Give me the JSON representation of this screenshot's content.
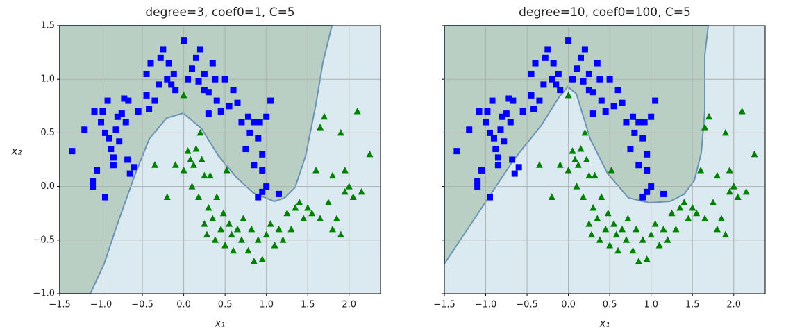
{
  "chart_data": [
    {
      "type": "scatter",
      "title": "degree=3, coef0=1, C=5",
      "x_label": "x₁",
      "y_label": "x₂",
      "xlim": [
        -1.5,
        2.38
      ],
      "ylim": [
        -1.0,
        1.5
      ],
      "grid": true,
      "xticks": [
        {
          "value": -1.5,
          "label": "−1.5"
        },
        {
          "value": -1.0,
          "label": "−1.0"
        },
        {
          "value": -0.5,
          "label": "−0.5"
        },
        {
          "value": 0.0,
          "label": "0.0"
        },
        {
          "value": 0.5,
          "label": "0.5"
        },
        {
          "value": 1.0,
          "label": "1.0"
        },
        {
          "value": 1.5,
          "label": "1.5"
        },
        {
          "value": 2.0,
          "label": "2.0"
        }
      ],
      "yticks": [
        {
          "value": -1.0,
          "label": "−1.0"
        },
        {
          "value": -0.5,
          "label": "−0.5"
        },
        {
          "value": 0.0,
          "label": "0.0"
        },
        {
          "value": 0.5,
          "label": "0.5"
        },
        {
          "value": 1.0,
          "label": "1.0"
        },
        {
          "value": 1.5,
          "label": "1.5"
        }
      ],
      "series": [
        {
          "color": "#0000ff",
          "marker": "square",
          "x": [
            -1.35,
            -1.2,
            -1.1,
            -1.1,
            -1.05,
            -1.08,
            -1.0,
            -0.98,
            -0.95,
            -0.95,
            -0.92,
            -0.9,
            -0.88,
            -0.85,
            -0.85,
            -0.82,
            -0.8,
            -0.78,
            -0.75,
            -0.72,
            -0.7,
            -0.68,
            -0.67,
            -0.65,
            -0.6,
            -0.55,
            -0.45,
            -0.45,
            -0.4,
            -0.42,
            -0.35,
            -0.3,
            -0.28,
            -0.25,
            -0.2,
            -0.18,
            -0.15,
            -0.1,
            -0.12,
            0.0,
            0.05,
            0.1,
            0.15,
            0.18,
            0.2,
            0.25,
            0.25,
            0.3,
            0.3,
            0.35,
            0.38,
            0.4,
            0.45,
            0.5,
            0.55,
            0.6,
            0.65,
            0.7,
            0.75,
            0.78,
            0.8,
            0.85,
            0.85,
            0.9,
            0.92,
            0.95,
            0.95,
            1.0,
            0.9,
            0.95,
            1.05,
            1.0,
            1.15
          ],
          "y": [
            0.33,
            0.53,
            0.0,
            0.05,
            0.15,
            0.7,
            0.6,
            0.7,
            0.5,
            -0.1,
            0.8,
            0.45,
            0.35,
            0.2,
            0.27,
            0.53,
            0.65,
            0.42,
            0.68,
            0.82,
            0.6,
            0.25,
            0.8,
            0.12,
            0.18,
            0.7,
            0.85,
            1.05,
            1.15,
            0.72,
            0.8,
            0.95,
            1.2,
            1.28,
            1.0,
            1.15,
            0.95,
            0.9,
            1.05,
            1.36,
            1.0,
            1.1,
            1.2,
            0.98,
            1.28,
            0.9,
            1.05,
            0.68,
            0.88,
            1.15,
            1.0,
            0.8,
            0.7,
            1.0,
            0.75,
            0.9,
            0.78,
            0.6,
            0.35,
            0.65,
            0.5,
            0.6,
            0.2,
            0.45,
            0.6,
            0.3,
            0.15,
            0.0,
            -0.1,
            -0.05,
            0.8,
            0.65,
            -0.07
          ]
        },
        {
          "color": "#008000",
          "marker": "triangle",
          "x": [
            0.0,
            -0.35,
            -0.2,
            -0.1,
            0.0,
            0.05,
            0.08,
            0.1,
            0.12,
            0.15,
            0.18,
            0.2,
            0.22,
            0.25,
            0.25,
            0.28,
            0.3,
            0.32,
            0.35,
            0.38,
            0.4,
            0.45,
            0.48,
            0.5,
            0.52,
            0.55,
            0.58,
            0.6,
            0.65,
            0.7,
            0.72,
            0.78,
            0.82,
            0.85,
            0.9,
            0.95,
            1.0,
            1.05,
            1.1,
            1.15,
            1.2,
            1.25,
            1.3,
            1.35,
            1.4,
            1.45,
            1.5,
            1.55,
            1.6,
            1.65,
            1.7,
            1.75,
            1.8,
            1.85,
            1.9,
            1.95,
            1.95,
            2.0,
            2.05,
            2.1,
            2.15,
            2.25,
            1.65,
            1.8,
            1.9
          ],
          "y": [
            0.85,
            0.2,
            -0.1,
            0.2,
            0.15,
            0.33,
            0.25,
            0.0,
            0.2,
            0.35,
            -0.1,
            0.5,
            0.25,
            0.1,
            -0.35,
            -0.45,
            -0.2,
            0.1,
            -0.3,
            -0.5,
            -0.1,
            -0.4,
            -0.25,
            -0.55,
            0.15,
            -0.35,
            -0.45,
            -0.6,
            -0.4,
            -0.5,
            -0.3,
            -0.6,
            -0.4,
            -0.7,
            -0.5,
            -0.68,
            -0.45,
            -0.35,
            -0.55,
            -0.4,
            -0.5,
            -0.25,
            -0.4,
            -0.2,
            -0.15,
            -0.3,
            -0.2,
            -0.25,
            0.15,
            -0.3,
            0.65,
            -0.15,
            0.1,
            -0.3,
            0.5,
            -0.05,
            0.15,
            0.0,
            -0.1,
            0.7,
            -0.05,
            0.3,
            0.55,
            -0.4,
            -0.45
          ]
        }
      ]
    },
    {
      "type": "scatter",
      "title": "degree=10, coef0=100, C=5",
      "x_label": "x₁",
      "xlim": [
        -1.5,
        2.38
      ],
      "ylim": [
        -1.0,
        1.5
      ],
      "grid": true,
      "xticks": [
        {
          "value": -1.5,
          "label": "−1.5"
        },
        {
          "value": -1.0,
          "label": "−1.0"
        },
        {
          "value": -0.5,
          "label": "−0.5"
        },
        {
          "value": 0.0,
          "label": "0.0"
        },
        {
          "value": 0.5,
          "label": "0.5"
        },
        {
          "value": 1.0,
          "label": "1.0"
        },
        {
          "value": 1.5,
          "label": "1.5"
        },
        {
          "value": 2.0,
          "label": "2.0"
        }
      ],
      "yticks": [
        -1.0,
        -0.5,
        0,
        0.5,
        1.0,
        1.5
      ],
      "series": [
        {
          "color": "#0000ff",
          "marker": "square",
          "x": [
            -1.35,
            -1.2,
            -1.1,
            -1.1,
            -1.05,
            -1.08,
            -1.0,
            -0.98,
            -0.95,
            -0.95,
            -0.92,
            -0.9,
            -0.88,
            -0.85,
            -0.85,
            -0.82,
            -0.8,
            -0.78,
            -0.75,
            -0.72,
            -0.7,
            -0.68,
            -0.67,
            -0.65,
            -0.6,
            -0.55,
            -0.45,
            -0.45,
            -0.4,
            -0.42,
            -0.35,
            -0.3,
            -0.28,
            -0.25,
            -0.2,
            -0.18,
            -0.15,
            -0.1,
            -0.12,
            0.0,
            0.05,
            0.1,
            0.15,
            0.18,
            0.2,
            0.25,
            0.25,
            0.3,
            0.3,
            0.35,
            0.38,
            0.4,
            0.45,
            0.5,
            0.55,
            0.6,
            0.65,
            0.7,
            0.75,
            0.78,
            0.8,
            0.85,
            0.85,
            0.9,
            0.92,
            0.95,
            0.95,
            1.0,
            0.9,
            0.95,
            1.05,
            1.0,
            1.15
          ],
          "y": [
            0.33,
            0.53,
            0.0,
            0.05,
            0.15,
            0.7,
            0.6,
            0.7,
            0.5,
            -0.1,
            0.8,
            0.45,
            0.35,
            0.2,
            0.27,
            0.53,
            0.65,
            0.42,
            0.68,
            0.82,
            0.6,
            0.25,
            0.8,
            0.12,
            0.18,
            0.7,
            0.85,
            1.05,
            1.15,
            0.72,
            0.8,
            0.95,
            1.2,
            1.28,
            1.0,
            1.15,
            0.95,
            0.9,
            1.05,
            1.36,
            1.0,
            1.1,
            1.2,
            0.98,
            1.28,
            0.9,
            1.05,
            0.68,
            0.88,
            1.15,
            1.0,
            0.8,
            0.7,
            1.0,
            0.75,
            0.9,
            0.78,
            0.6,
            0.35,
            0.65,
            0.5,
            0.6,
            0.2,
            0.45,
            0.6,
            0.3,
            0.15,
            0.0,
            -0.1,
            -0.05,
            0.8,
            0.65,
            -0.07
          ]
        },
        {
          "color": "#008000",
          "marker": "triangle",
          "x": [
            0.0,
            -0.35,
            -0.2,
            -0.1,
            0.0,
            0.05,
            0.08,
            0.1,
            0.12,
            0.15,
            0.18,
            0.2,
            0.22,
            0.25,
            0.25,
            0.28,
            0.3,
            0.32,
            0.35,
            0.38,
            0.4,
            0.45,
            0.48,
            0.5,
            0.52,
            0.55,
            0.58,
            0.6,
            0.65,
            0.7,
            0.72,
            0.78,
            0.82,
            0.85,
            0.9,
            0.95,
            1.0,
            1.05,
            1.1,
            1.15,
            1.2,
            1.25,
            1.3,
            1.35,
            1.4,
            1.45,
            1.5,
            1.55,
            1.6,
            1.65,
            1.7,
            1.75,
            1.8,
            1.85,
            1.9,
            1.95,
            1.95,
            2.0,
            2.05,
            2.1,
            2.15,
            2.25,
            1.65,
            1.8,
            1.9
          ],
          "y": [
            0.85,
            0.2,
            -0.1,
            0.2,
            0.15,
            0.33,
            0.25,
            0.0,
            0.2,
            0.35,
            -0.1,
            0.5,
            0.25,
            0.1,
            -0.35,
            -0.45,
            -0.2,
            0.1,
            -0.3,
            -0.5,
            -0.1,
            -0.4,
            -0.25,
            -0.55,
            0.15,
            -0.35,
            -0.45,
            -0.6,
            -0.4,
            -0.5,
            -0.3,
            -0.6,
            -0.4,
            -0.7,
            -0.5,
            -0.68,
            -0.45,
            -0.35,
            -0.55,
            -0.4,
            -0.5,
            -0.25,
            -0.4,
            -0.2,
            -0.15,
            -0.3,
            -0.2,
            -0.25,
            0.15,
            -0.3,
            0.65,
            -0.15,
            0.1,
            -0.3,
            0.5,
            -0.05,
            0.15,
            0.0,
            -0.1,
            0.7,
            -0.05,
            0.3,
            0.55,
            -0.4,
            -0.45
          ]
        }
      ]
    }
  ]
}
